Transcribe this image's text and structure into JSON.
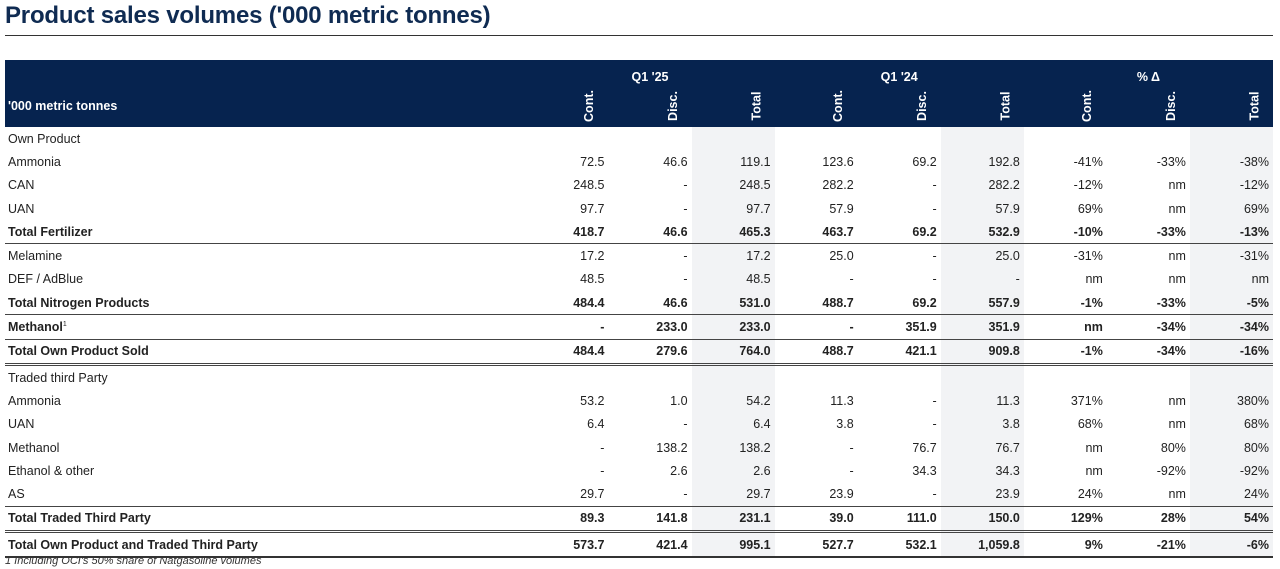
{
  "title": "Product sales volumes ('000 metric tonnes)",
  "colors": {
    "header_bg": "#06234f",
    "title": "#0f2b52",
    "total_col_bg": "#f2f3f5"
  },
  "header": {
    "row_label": "'000 metric tonnes",
    "groups": [
      "Q1 '25",
      "Q1 '24",
      "% Δ"
    ],
    "subcolumns": [
      "Cont.",
      "Disc.",
      "Total",
      "Cont.",
      "Disc.",
      "Total",
      "Cont.",
      "Disc.",
      "Total"
    ]
  },
  "rows": [
    {
      "label": "Own Product",
      "type": "section",
      "values": []
    },
    {
      "label": "Ammonia",
      "values": [
        "72.5",
        "46.6",
        "119.1",
        "123.6",
        "69.2",
        "192.8",
        "-41%",
        "-33%",
        "-38%"
      ]
    },
    {
      "label": "CAN",
      "values": [
        "248.5",
        "-",
        "248.5",
        "282.2",
        "-",
        "282.2",
        "-12%",
        "nm",
        "-12%"
      ]
    },
    {
      "label": "UAN",
      "values": [
        "97.7",
        "-",
        "97.7",
        "57.9",
        "-",
        "57.9",
        "69%",
        "nm",
        "69%"
      ]
    },
    {
      "label": "Total Fertilizer",
      "type": "bold",
      "values": [
        "418.7",
        "46.6",
        "465.3",
        "463.7",
        "69.2",
        "532.9",
        "-10%",
        "-33%",
        "-13%"
      ]
    },
    {
      "label": "Melamine",
      "border": "bt",
      "values": [
        "17.2",
        "-",
        "17.2",
        "25.0",
        "-",
        "25.0",
        "-31%",
        "nm",
        "-31%"
      ]
    },
    {
      "label": "DEF / AdBlue",
      "values": [
        "48.5",
        "-",
        "48.5",
        "-",
        "-",
        "-",
        "nm",
        "nm",
        "nm"
      ]
    },
    {
      "label": "Total Nitrogen Products",
      "type": "bold",
      "values": [
        "484.4",
        "46.6",
        "531.0",
        "488.7",
        "69.2",
        "557.9",
        "-1%",
        "-33%",
        "-5%"
      ]
    },
    {
      "label": "Methanol",
      "footnote_mark": "1",
      "type": "bold",
      "border": "bt",
      "values": [
        "-",
        "233.0",
        "233.0",
        "-",
        "351.9",
        "351.9",
        "nm",
        "-34%",
        "-34%"
      ]
    },
    {
      "label": "Total Own Product Sold",
      "type": "bold",
      "border": "bt",
      "values": [
        "484.4",
        "279.6",
        "764.0",
        "488.7",
        "421.1",
        "909.8",
        "-1%",
        "-34%",
        "-16%"
      ]
    },
    {
      "label": "Traded third Party",
      "type": "section",
      "border": "bdbl",
      "values": []
    },
    {
      "label": "Ammonia",
      "values": [
        "53.2",
        "1.0",
        "54.2",
        "11.3",
        "-",
        "11.3",
        "371%",
        "nm",
        "380%"
      ]
    },
    {
      "label": "UAN",
      "values": [
        "6.4",
        "-",
        "6.4",
        "3.8",
        "-",
        "3.8",
        "68%",
        "nm",
        "68%"
      ]
    },
    {
      "label": "Methanol",
      "values": [
        "-",
        "138.2",
        "138.2",
        "-",
        "76.7",
        "76.7",
        "nm",
        "80%",
        "80%"
      ]
    },
    {
      "label": "Ethanol & other",
      "values": [
        "-",
        "2.6",
        "2.6",
        "-",
        "34.3",
        "34.3",
        "nm",
        "-92%",
        "-92%"
      ]
    },
    {
      "label": "AS",
      "values": [
        "29.7",
        "-",
        "29.7",
        "23.9",
        "-",
        "23.9",
        "24%",
        "nm",
        "24%"
      ]
    },
    {
      "label": "Total Traded Third Party",
      "type": "bold",
      "border": "bt",
      "values": [
        "89.3",
        "141.8",
        "231.1",
        "39.0",
        "111.0",
        "150.0",
        "129%",
        "28%",
        "54%"
      ]
    },
    {
      "label": "Total Own Product and Traded Third Party",
      "type": "bold",
      "border": "bdbl",
      "last": true,
      "values": [
        "573.7",
        "421.4",
        "995.1",
        "527.7",
        "532.1",
        "1,059.8",
        "9%",
        "-21%",
        "-6%"
      ]
    }
  ],
  "footnote": "1  Including OCI's 50% share of Natgasoline volumes"
}
